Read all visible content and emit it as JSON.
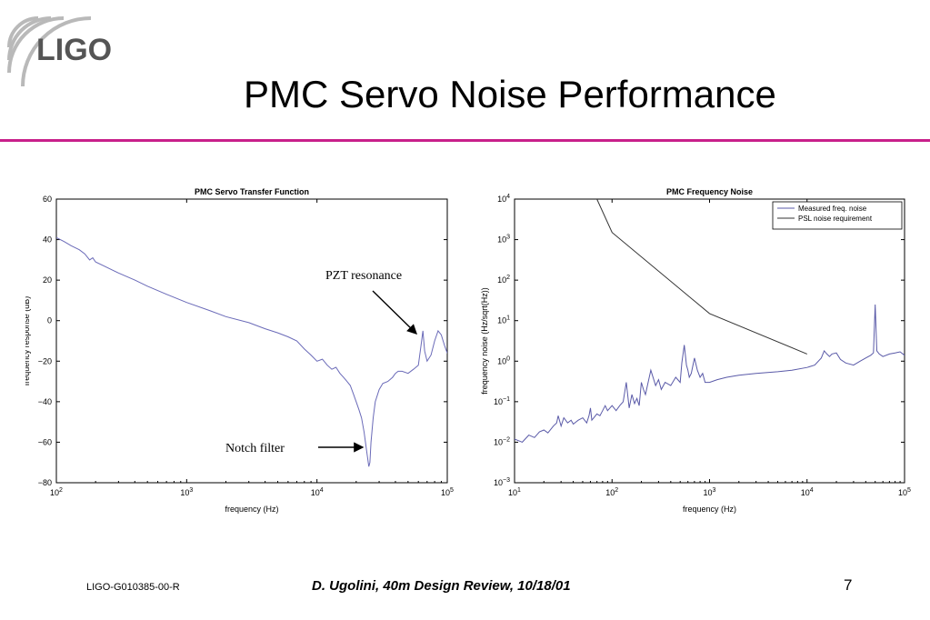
{
  "slide": {
    "title": "PMC Servo Noise Performance",
    "logo_text": "LIGO",
    "accent_color": "#c8208a"
  },
  "footer": {
    "doc_id": "LIGO-G010385-00-R",
    "citation": "D. Ugolini, 40m Design Review, 10/18/01",
    "page_number": "7"
  },
  "annotations": {
    "pzt": "PZT resonance",
    "notch": "Notch filter"
  },
  "chart_data": [
    {
      "type": "line",
      "title": "PMC Servo Transfer Function",
      "xlabel": "frequency (Hz)",
      "ylabel": "frequency response (dB)",
      "xscale": "log",
      "xlim": [
        100,
        100000
      ],
      "ylim": [
        -80,
        60
      ],
      "xticks": [
        100,
        1000,
        10000,
        100000
      ],
      "xtick_labels": [
        [
          "10",
          "2"
        ],
        [
          "10",
          "3"
        ],
        [
          "10",
          "4"
        ],
        [
          "10",
          "5"
        ]
      ],
      "yticks": [
        60,
        40,
        20,
        0,
        -20,
        -40,
        -60,
        -80
      ],
      "ytick_labels": [
        "60",
        "40",
        "20",
        "0",
        "−20",
        "−40",
        "−60",
        "−80"
      ],
      "grid": false,
      "line_color": "#6a6ab8",
      "series": [
        {
          "x": [
            100,
            115,
            130,
            150,
            165,
            180,
            190,
            200,
            250,
            300,
            400,
            500,
            700,
            1000,
            1500,
            2000,
            3000,
            4000,
            5000,
            6000,
            7000,
            8000,
            9000,
            10000,
            11000,
            12000,
            13000,
            14000,
            15000,
            16000,
            17000,
            18000,
            19000,
            20000,
            21000,
            22000,
            23000,
            24000,
            25000,
            25500,
            26000,
            27000,
            28000,
            30000,
            32000,
            35000,
            38000,
            40000,
            42000,
            45000,
            50000,
            55000,
            60000,
            63000,
            65000,
            67000,
            70000,
            75000,
            80000,
            85000,
            90000,
            95000,
            100000
          ],
          "y": [
            41,
            39,
            37,
            35,
            33,
            30,
            31,
            29,
            26,
            23.5,
            20,
            17,
            13,
            9,
            5,
            2,
            -1,
            -4,
            -6,
            -8,
            -10,
            -14,
            -17,
            -20,
            -19,
            -22,
            -24,
            -23,
            -26,
            -28,
            -30,
            -32,
            -36,
            -40,
            -44,
            -48,
            -55,
            -64,
            -72,
            -70,
            -60,
            -48,
            -40,
            -34,
            -31,
            -30,
            -28,
            -26,
            -25,
            -25,
            -26,
            -24,
            -22,
            -12,
            -5,
            -15,
            -20,
            -17,
            -10,
            -5,
            -7,
            -12,
            -16
          ]
        }
      ]
    },
    {
      "type": "line",
      "title": "PMC Frequency Noise",
      "xlabel": "frequency (Hz)",
      "ylabel": "frequency noise (Hz/sqrt(Hz))",
      "xscale": "log",
      "yscale": "log",
      "xlim": [
        10,
        100000
      ],
      "ylim": [
        0.001,
        10000
      ],
      "xticks": [
        10,
        100,
        1000,
        10000,
        100000
      ],
      "xtick_labels": [
        [
          "10",
          "1"
        ],
        [
          "10",
          "2"
        ],
        [
          "10",
          "3"
        ],
        [
          "10",
          "4"
        ],
        [
          "10",
          "5"
        ]
      ],
      "yticks": [
        10000,
        1000,
        100,
        10,
        1,
        0.1,
        0.01,
        0.001
      ],
      "ytick_labels": [
        [
          "10",
          "4"
        ],
        [
          "10",
          "3"
        ],
        [
          "10",
          "2"
        ],
        [
          "10",
          "1"
        ],
        [
          "10",
          "0"
        ],
        [
          "10",
          "−1"
        ],
        [
          "10",
          "−2"
        ],
        [
          "10",
          "−3"
        ]
      ],
      "grid": false,
      "legend_position": "top-right",
      "series": [
        {
          "name": "Measured freq. noise",
          "color": "#5a5aa8",
          "x": [
            10,
            12,
            14,
            16,
            18,
            20,
            22,
            25,
            27,
            28,
            30,
            32,
            35,
            38,
            40,
            45,
            50,
            55,
            58,
            60,
            62,
            65,
            70,
            75,
            80,
            85,
            90,
            95,
            100,
            110,
            120,
            130,
            140,
            150,
            160,
            170,
            180,
            190,
            200,
            210,
            220,
            250,
            280,
            300,
            320,
            350,
            400,
            450,
            500,
            520,
            550,
            580,
            600,
            620,
            650,
            700,
            750,
            800,
            850,
            900,
            1000,
            1200,
            1500,
            2000,
            3000,
            5000,
            7000,
            10000,
            12000,
            14000,
            15000,
            16000,
            17000,
            18000,
            20000,
            22000,
            25000,
            30000,
            35000,
            40000,
            45000,
            48000,
            50000,
            52000,
            55000,
            60000,
            70000,
            80000,
            90000,
            100000
          ],
          "y": [
            0.012,
            0.01,
            0.015,
            0.013,
            0.018,
            0.02,
            0.017,
            0.025,
            0.03,
            0.045,
            0.025,
            0.04,
            0.03,
            0.035,
            0.028,
            0.035,
            0.04,
            0.03,
            0.045,
            0.07,
            0.035,
            0.04,
            0.05,
            0.045,
            0.06,
            0.08,
            0.06,
            0.07,
            0.08,
            0.06,
            0.08,
            0.1,
            0.3,
            0.07,
            0.15,
            0.09,
            0.12,
            0.08,
            0.3,
            0.2,
            0.15,
            0.6,
            0.25,
            0.35,
            0.2,
            0.3,
            0.25,
            0.4,
            0.3,
            0.9,
            2.5,
            0.8,
            0.6,
            0.4,
            0.5,
            1.2,
            0.6,
            0.4,
            0.5,
            0.3,
            0.3,
            0.35,
            0.4,
            0.45,
            0.5,
            0.55,
            0.6,
            0.7,
            0.8,
            1.2,
            1.8,
            1.5,
            1.3,
            1.5,
            1.6,
            1.1,
            0.9,
            0.8,
            1.0,
            1.2,
            1.4,
            1.6,
            25,
            1.8,
            1.5,
            1.3,
            1.5,
            1.6,
            1.7,
            1.4
          ]
        },
        {
          "name": "PSL noise requirement",
          "color": "#333333",
          "x": [
            70,
            100,
            1000,
            10000
          ],
          "y": [
            10000,
            1500,
            15,
            1.5
          ]
        }
      ]
    }
  ]
}
